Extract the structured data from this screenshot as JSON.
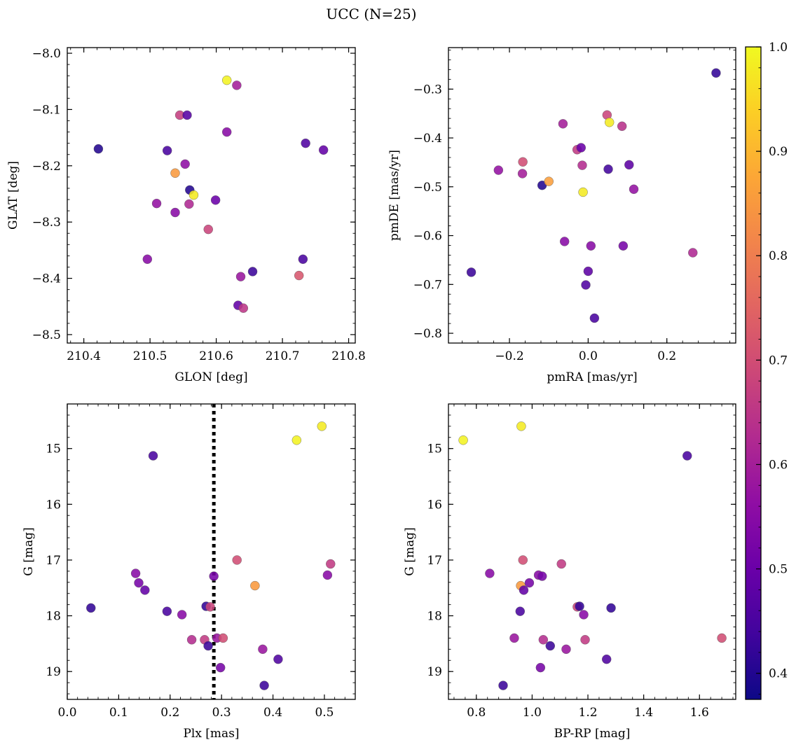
{
  "title": "UCC (N=25)",
  "colorbar": {
    "range": [
      0.375,
      1.0
    ],
    "ticks": [
      0.4,
      0.5,
      0.6,
      0.7,
      0.8,
      0.9,
      1.0
    ],
    "tick_labels": [
      "0.4",
      "0.5",
      "0.6",
      "0.7",
      "0.8",
      "0.9",
      "1.0"
    ],
    "colormap": "plasma"
  },
  "reference_line": {
    "panel": "plx_g",
    "x": 0.285,
    "style": "dotted"
  },
  "chart_data": [
    {
      "type": "scatter",
      "xlabel": "GLON [deg]",
      "ylabel": "GLAT [deg]",
      "xlim": [
        210.375,
        210.81
      ],
      "ylim": [
        -8.515,
        -7.99
      ],
      "yinverted": false,
      "xticks": [
        210.4,
        210.5,
        210.6,
        210.7,
        210.8
      ],
      "xtick_labels": [
        "210.4",
        "210.5",
        "210.6",
        "210.7",
        "210.8"
      ],
      "yticks": [
        -8.0,
        -8.1,
        -8.2,
        -8.3,
        -8.4,
        -8.5
      ],
      "ytick_labels": [
        "−8.0",
        "−8.1",
        "−8.2",
        "−8.3",
        "−8.4",
        "−8.5"
      ],
      "points": [
        {
          "x": 210.422,
          "y": -8.17,
          "c": 0.4
        },
        {
          "x": 210.496,
          "y": -8.366,
          "c": 0.55
        },
        {
          "x": 210.51,
          "y": -8.267,
          "c": 0.57
        },
        {
          "x": 210.526,
          "y": -8.173,
          "c": 0.45
        },
        {
          "x": 210.538,
          "y": -8.213,
          "c": 0.85
        },
        {
          "x": 210.538,
          "y": -8.283,
          "c": 0.55
        },
        {
          "x": 210.545,
          "y": -8.11,
          "c": 0.67
        },
        {
          "x": 210.553,
          "y": -8.197,
          "c": 0.56
        },
        {
          "x": 210.556,
          "y": -8.11,
          "c": 0.47
        },
        {
          "x": 210.559,
          "y": -8.268,
          "c": 0.62
        },
        {
          "x": 210.56,
          "y": -8.243,
          "c": 0.4
        },
        {
          "x": 210.566,
          "y": -8.252,
          "c": 0.98
        },
        {
          "x": 210.588,
          "y": -8.313,
          "c": 0.68
        },
        {
          "x": 210.599,
          "y": -8.261,
          "c": 0.5
        },
        {
          "x": 210.616,
          "y": -8.14,
          "c": 0.55
        },
        {
          "x": 210.616,
          "y": -8.048,
          "c": 0.99
        },
        {
          "x": 210.631,
          "y": -8.057,
          "c": 0.6
        },
        {
          "x": 210.633,
          "y": -8.448,
          "c": 0.49
        },
        {
          "x": 210.637,
          "y": -8.397,
          "c": 0.58
        },
        {
          "x": 210.641,
          "y": -8.453,
          "c": 0.65
        },
        {
          "x": 210.655,
          "y": -8.388,
          "c": 0.43
        },
        {
          "x": 210.725,
          "y": -8.395,
          "c": 0.72
        },
        {
          "x": 210.731,
          "y": -8.366,
          "c": 0.45
        },
        {
          "x": 210.735,
          "y": -8.16,
          "c": 0.46
        },
        {
          "x": 210.762,
          "y": -8.172,
          "c": 0.49
        }
      ]
    },
    {
      "type": "scatter",
      "xlabel": "pmRA [mas/yr]",
      "ylabel": "pmDE [mas/yr]",
      "xlim": [
        -0.355,
        0.375
      ],
      "ylim": [
        -0.82,
        -0.215
      ],
      "yinverted": false,
      "xticks": [
        -0.2,
        0.0,
        0.2
      ],
      "xtick_labels": [
        "−0.2",
        "0.0",
        "0.2"
      ],
      "yticks": [
        -0.3,
        -0.4,
        -0.5,
        -0.6,
        -0.7,
        -0.8
      ],
      "ytick_labels": [
        "−0.3",
        "−0.4",
        "−0.5",
        "−0.6",
        "−0.7",
        "−0.8"
      ],
      "points": [
        {
          "x": -0.297,
          "y": -0.675,
          "c": 0.43
        },
        {
          "x": -0.228,
          "y": -0.466,
          "c": 0.57
        },
        {
          "x": -0.166,
          "y": -0.449,
          "c": 0.7
        },
        {
          "x": -0.167,
          "y": -0.473,
          "c": 0.6
        },
        {
          "x": -0.117,
          "y": -0.497,
          "c": 0.4
        },
        {
          "x": -0.1,
          "y": -0.489,
          "c": 0.86
        },
        {
          "x": -0.064,
          "y": -0.371,
          "c": 0.6
        },
        {
          "x": -0.06,
          "y": -0.612,
          "c": 0.55
        },
        {
          "x": -0.028,
          "y": -0.424,
          "c": 0.66
        },
        {
          "x": -0.018,
          "y": -0.42,
          "c": 0.5
        },
        {
          "x": -0.015,
          "y": -0.456,
          "c": 0.63
        },
        {
          "x": -0.013,
          "y": -0.511,
          "c": 0.98
        },
        {
          "x": -0.006,
          "y": -0.701,
          "c": 0.46
        },
        {
          "x": 0.0,
          "y": -0.673,
          "c": 0.48
        },
        {
          "x": 0.007,
          "y": -0.621,
          "c": 0.55
        },
        {
          "x": 0.016,
          "y": -0.769,
          "c": 0.45
        },
        {
          "x": 0.048,
          "y": -0.353,
          "c": 0.68
        },
        {
          "x": 0.051,
          "y": -0.464,
          "c": 0.44
        },
        {
          "x": 0.054,
          "y": -0.368,
          "c": 0.98
        },
        {
          "x": 0.086,
          "y": -0.376,
          "c": 0.64
        },
        {
          "x": 0.089,
          "y": -0.621,
          "c": 0.52
        },
        {
          "x": 0.104,
          "y": -0.455,
          "c": 0.48
        },
        {
          "x": 0.116,
          "y": -0.505,
          "c": 0.57
        },
        {
          "x": 0.266,
          "y": -0.635,
          "c": 0.62
        },
        {
          "x": 0.325,
          "y": -0.267,
          "c": 0.42
        }
      ]
    },
    {
      "type": "scatter",
      "xlabel": "Plx [mas]",
      "ylabel": "G [mag]",
      "xlim": [
        0.0,
        0.56
      ],
      "ylim": [
        14.2,
        19.5
      ],
      "yinverted": true,
      "xticks": [
        0.0,
        0.1,
        0.2,
        0.3,
        0.4,
        0.5
      ],
      "xtick_labels": [
        "0.0",
        "0.1",
        "0.2",
        "0.3",
        "0.4",
        "0.5"
      ],
      "yticks": [
        15,
        16,
        17,
        18,
        19
      ],
      "ytick_labels": [
        "15",
        "16",
        "17",
        "18",
        "19"
      ],
      "points": [
        {
          "x": 0.046,
          "y": 17.86,
          "c": 0.42
        },
        {
          "x": 0.133,
          "y": 17.24,
          "c": 0.55
        },
        {
          "x": 0.139,
          "y": 17.41,
          "c": 0.52
        },
        {
          "x": 0.151,
          "y": 17.54,
          "c": 0.49
        },
        {
          "x": 0.167,
          "y": 15.13,
          "c": 0.45
        },
        {
          "x": 0.194,
          "y": 17.92,
          "c": 0.45
        },
        {
          "x": 0.223,
          "y": 17.98,
          "c": 0.55
        },
        {
          "x": 0.242,
          "y": 18.43,
          "c": 0.63
        },
        {
          "x": 0.267,
          "y": 18.43,
          "c": 0.66
        },
        {
          "x": 0.27,
          "y": 17.83,
          "c": 0.42
        },
        {
          "x": 0.274,
          "y": 18.54,
          "c": 0.43
        },
        {
          "x": 0.278,
          "y": 17.84,
          "c": 0.68
        },
        {
          "x": 0.285,
          "y": 17.29,
          "c": 0.52
        },
        {
          "x": 0.291,
          "y": 18.4,
          "c": 0.58
        },
        {
          "x": 0.298,
          "y": 18.93,
          "c": 0.52
        },
        {
          "x": 0.303,
          "y": 18.4,
          "c": 0.7
        },
        {
          "x": 0.33,
          "y": 17.0,
          "c": 0.7
        },
        {
          "x": 0.365,
          "y": 17.46,
          "c": 0.85
        },
        {
          "x": 0.38,
          "y": 18.6,
          "c": 0.58
        },
        {
          "x": 0.383,
          "y": 19.25,
          "c": 0.43
        },
        {
          "x": 0.41,
          "y": 18.78,
          "c": 0.46
        },
        {
          "x": 0.446,
          "y": 14.85,
          "c": 0.99
        },
        {
          "x": 0.495,
          "y": 14.6,
          "c": 0.98
        },
        {
          "x": 0.506,
          "y": 17.27,
          "c": 0.55
        },
        {
          "x": 0.512,
          "y": 17.07,
          "c": 0.66
        }
      ]
    },
    {
      "type": "scatter",
      "xlabel": "BP-RP [mag]",
      "ylabel": "G [mag]",
      "xlim": [
        0.7,
        1.73
      ],
      "ylim": [
        14.2,
        19.5
      ],
      "yinverted": true,
      "xticks": [
        0.8,
        1.0,
        1.2,
        1.4,
        1.6
      ],
      "xtick_labels": [
        "0.8",
        "1.0",
        "1.2",
        "1.4",
        "1.6"
      ],
      "yticks": [
        15,
        16,
        17,
        18,
        19
      ],
      "ytick_labels": [
        "15",
        "16",
        "17",
        "18",
        "19"
      ],
      "points": [
        {
          "x": 0.753,
          "y": 14.85,
          "c": 0.99
        },
        {
          "x": 0.848,
          "y": 17.24,
          "c": 0.55
        },
        {
          "x": 0.896,
          "y": 19.25,
          "c": 0.43
        },
        {
          "x": 0.936,
          "y": 18.4,
          "c": 0.58
        },
        {
          "x": 0.957,
          "y": 17.92,
          "c": 0.45
        },
        {
          "x": 0.959,
          "y": 17.46,
          "c": 0.85
        },
        {
          "x": 0.961,
          "y": 14.6,
          "c": 0.98
        },
        {
          "x": 0.967,
          "y": 17.0,
          "c": 0.7
        },
        {
          "x": 0.97,
          "y": 17.54,
          "c": 0.49
        },
        {
          "x": 0.99,
          "y": 17.41,
          "c": 0.52
        },
        {
          "x": 1.023,
          "y": 17.27,
          "c": 0.55
        },
        {
          "x": 1.03,
          "y": 18.93,
          "c": 0.52
        },
        {
          "x": 1.036,
          "y": 17.29,
          "c": 0.52
        },
        {
          "x": 1.04,
          "y": 18.43,
          "c": 0.63
        },
        {
          "x": 1.065,
          "y": 18.54,
          "c": 0.43
        },
        {
          "x": 1.105,
          "y": 17.07,
          "c": 0.66
        },
        {
          "x": 1.122,
          "y": 18.6,
          "c": 0.58
        },
        {
          "x": 1.162,
          "y": 17.84,
          "c": 0.68
        },
        {
          "x": 1.17,
          "y": 17.83,
          "c": 0.42
        },
        {
          "x": 1.185,
          "y": 17.98,
          "c": 0.55
        },
        {
          "x": 1.19,
          "y": 18.43,
          "c": 0.66
        },
        {
          "x": 1.267,
          "y": 18.78,
          "c": 0.46
        },
        {
          "x": 1.283,
          "y": 17.86,
          "c": 0.42
        },
        {
          "x": 1.556,
          "y": 15.13,
          "c": 0.45
        },
        {
          "x": 1.68,
          "y": 18.4,
          "c": 0.7
        }
      ]
    }
  ]
}
